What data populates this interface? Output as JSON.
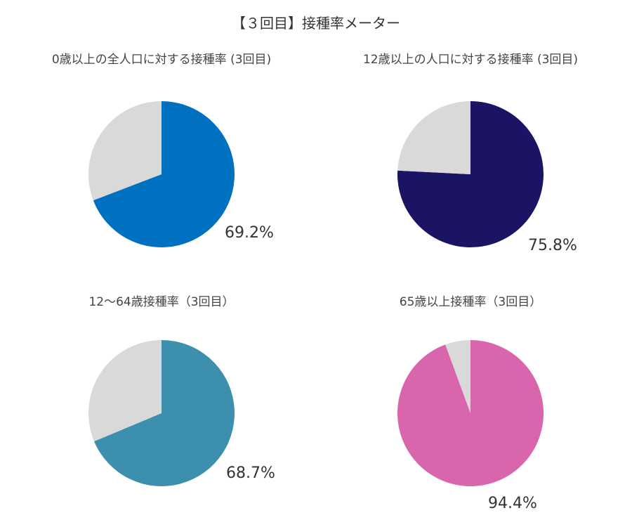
{
  "header": {
    "title": "【３回目】接種率メーター"
  },
  "chart_data": [
    {
      "type": "pie",
      "title": "0歳以上の全人口に対する接種率 (3回目)",
      "values": [
        69.2,
        30.8
      ],
      "label": "69.2%",
      "colors": [
        "#0070c0",
        "#d9d9d9"
      ]
    },
    {
      "type": "pie",
      "title": "12歳以上の人口に対する接種率 (3回目)",
      "values": [
        75.8,
        24.2
      ],
      "label": "75.8%",
      "colors": [
        "#1b1464",
        "#d9d9d9"
      ]
    },
    {
      "type": "pie",
      "title": "12～64歳接種率（3回目）",
      "values": [
        68.7,
        31.3
      ],
      "label": "68.7%",
      "colors": [
        "#3c8fad",
        "#d9d9d9"
      ]
    },
    {
      "type": "pie",
      "title": "65歳以上接種率（3回目）",
      "values": [
        94.4,
        5.6
      ],
      "label": "94.4%",
      "colors": [
        "#d966ac",
        "#d9d9d9"
      ]
    }
  ]
}
